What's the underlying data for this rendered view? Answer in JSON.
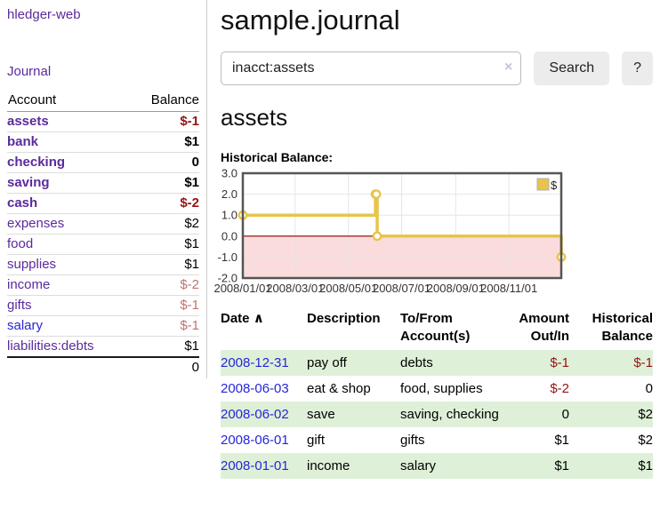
{
  "sidebar": {
    "brand": "hledger-web",
    "nav": {
      "journal": "Journal"
    },
    "accounts_table": {
      "headers": {
        "account": "Account",
        "balance": "Balance"
      },
      "rows": [
        {
          "name": "assets",
          "indent": 1,
          "bold": true,
          "balance": "$-1",
          "tone": "neg"
        },
        {
          "name": "bank",
          "indent": 2,
          "bold": true,
          "balance": "$1",
          "tone": "normal"
        },
        {
          "name": "checking",
          "indent": 3,
          "bold": true,
          "balance": "0",
          "tone": "normal"
        },
        {
          "name": "saving",
          "indent": 3,
          "bold": true,
          "balance": "$1",
          "tone": "normal"
        },
        {
          "name": "cash",
          "indent": 2,
          "bold": true,
          "balance": "$-2",
          "tone": "neg"
        },
        {
          "name": "expenses",
          "indent": 1,
          "bold": false,
          "balance": "$2",
          "tone": "normal"
        },
        {
          "name": "food",
          "indent": 2,
          "bold": false,
          "balance": "$1",
          "tone": "normal"
        },
        {
          "name": "supplies",
          "indent": 2,
          "bold": false,
          "balance": "$1",
          "tone": "normal"
        },
        {
          "name": "income",
          "indent": 1,
          "bold": false,
          "balance": "$-2",
          "tone": "neg-soft"
        },
        {
          "name": "gifts",
          "indent": 2,
          "bold": false,
          "balance": "$-1",
          "tone": "neg-soft"
        },
        {
          "name": "salary",
          "indent": 2,
          "bold": false,
          "balance": "$-1",
          "tone": "neg-soft",
          "link_blue": true
        },
        {
          "name": "liabilities:debts",
          "indent": 1,
          "bold": false,
          "balance": "$1",
          "tone": "normal"
        }
      ],
      "total": "0"
    }
  },
  "header": {
    "title": "sample.journal"
  },
  "search": {
    "value": "inacct:assets",
    "clear_icon": "×",
    "button": "Search",
    "help_button": "?"
  },
  "account_page": {
    "heading": "assets",
    "chart_label": "Historical Balance:"
  },
  "chart_data": {
    "type": "line",
    "step": "after",
    "title": "Historical Balance:",
    "legend": [
      {
        "label": "$",
        "color": "#e8c44a"
      }
    ],
    "points": [
      {
        "date": "2008-01-01",
        "value": 1
      },
      {
        "date": "2008-06-01",
        "value": 2
      },
      {
        "date": "2008-06-02",
        "value": 2
      },
      {
        "date": "2008-06-03",
        "value": 0
      },
      {
        "date": "2008-12-31",
        "value": -1
      }
    ],
    "x_range": [
      "2008-01-01",
      "2008-12-31"
    ],
    "x_ticks": [
      {
        "date": "2008-01-01",
        "label": "2008/01/01"
      },
      {
        "date": "2008-03-01",
        "label": "2008/03/01"
      },
      {
        "date": "2008-05-01",
        "label": "2008/05/01"
      },
      {
        "date": "2008-07-01",
        "label": "2008/07/01"
      },
      {
        "date": "2008-09-01",
        "label": "2008/09/01"
      },
      {
        "date": "2008-11-01",
        "label": "2008/11/01"
      }
    ],
    "ylim": [
      -2,
      3
    ],
    "y_ticks": [
      "3.0",
      "2.0",
      "1.0",
      "0.0",
      "-1.0",
      "-2.0"
    ],
    "grid": true,
    "legend_position": "top-right",
    "line_color": "#e8c44a",
    "marker_fill": "#ffffff",
    "negative_region_fill": "#fbdcdc",
    "zero_line_color": "#8b0000",
    "grid_color": "#e4e4e4",
    "border_color": "#555555"
  },
  "transactions_table": {
    "headers": {
      "date": "Date",
      "sort_icon": "∧",
      "description": "Description",
      "accounts": "To/From Account(s)",
      "amount": "Amount Out/In",
      "balance": "Historical Balance"
    },
    "rows": [
      {
        "date": "2008-12-31",
        "description": "pay off",
        "accounts": "debts",
        "amount": "$-1",
        "amount_neg": true,
        "balance": "$-1",
        "balance_neg": true,
        "shaded": true
      },
      {
        "date": "2008-06-03",
        "description": "eat & shop",
        "accounts": "food, supplies",
        "amount": "$-2",
        "amount_neg": true,
        "balance": "0",
        "balance_neg": false,
        "shaded": false
      },
      {
        "date": "2008-06-02",
        "description": "save",
        "accounts": "saving, checking",
        "amount": "0",
        "amount_neg": false,
        "balance": "$2",
        "balance_neg": false,
        "shaded": true
      },
      {
        "date": "2008-06-01",
        "description": "gift",
        "accounts": "gifts",
        "amount": "$1",
        "amount_neg": false,
        "balance": "$2",
        "balance_neg": false,
        "shaded": false
      },
      {
        "date": "2008-01-01",
        "description": "income",
        "accounts": "salary",
        "amount": "$1",
        "amount_neg": false,
        "balance": "$1",
        "balance_neg": false,
        "shaded": true
      }
    ]
  },
  "colors": {
    "accent_purple": "#5b2a9d",
    "link_blue": "#2626d8",
    "negative": "#941414",
    "negative_soft": "#bd7474",
    "row_green": "#dff0d8",
    "chart_gold": "#e8c44a",
    "button_bg": "#ececec"
  }
}
